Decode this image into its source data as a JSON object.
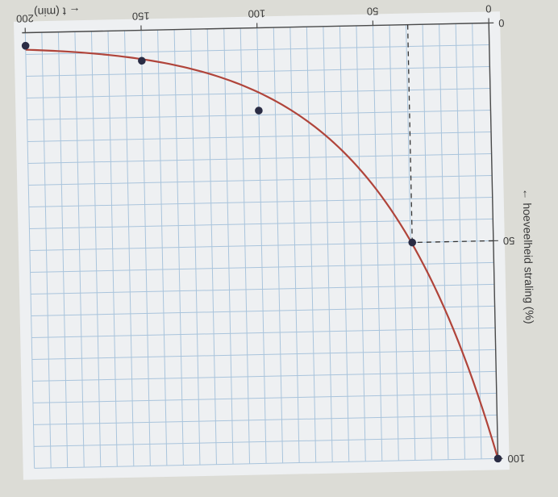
{
  "chart_data": {
    "type": "line",
    "title": "",
    "xlabel": "← t (min)",
    "ylabel": "← hoeveelheid straling (%)",
    "xlim": [
      0,
      200
    ],
    "ylim": [
      0,
      100
    ],
    "x_ticks": [
      "0",
      "50",
      "100",
      "150",
      "200"
    ],
    "y_ticks": [
      "0",
      "50",
      "100"
    ],
    "grid": true,
    "series": [
      {
        "x": [
          0,
          35,
          100,
          150,
          200
        ],
        "y": [
          100,
          50,
          19,
          7,
          3
        ],
        "color": "#b0443a",
        "marker_color": "#2a2c44"
      }
    ],
    "annotations": [
      {
        "type": "dashed-guide",
        "x": 35,
        "y": 50
      }
    ]
  }
}
